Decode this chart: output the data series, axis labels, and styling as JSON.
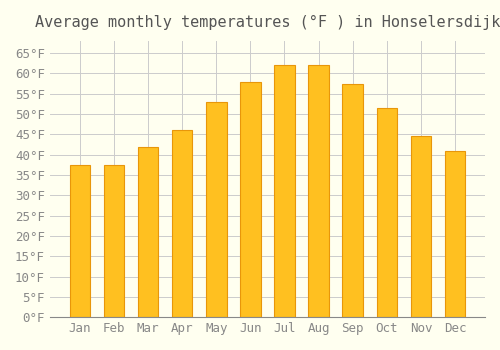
{
  "title": "Average monthly temperatures (°F ) in Honselersdijk",
  "months": [
    "Jan",
    "Feb",
    "Mar",
    "Apr",
    "May",
    "Jun",
    "Jul",
    "Aug",
    "Sep",
    "Oct",
    "Nov",
    "Dec"
  ],
  "values": [
    37.5,
    37.5,
    42,
    46,
    53,
    58,
    62,
    62,
    57.5,
    51.5,
    44.5,
    41
  ],
  "bar_color": "#FFC020",
  "bar_edge_color": "#E8960A",
  "background_color": "#FFFFF0",
  "grid_color": "#CCCCCC",
  "ylim": [
    0,
    68
  ],
  "yticks": [
    0,
    5,
    10,
    15,
    20,
    25,
    30,
    35,
    40,
    45,
    50,
    55,
    60,
    65
  ],
  "title_fontsize": 11,
  "tick_fontsize": 9
}
